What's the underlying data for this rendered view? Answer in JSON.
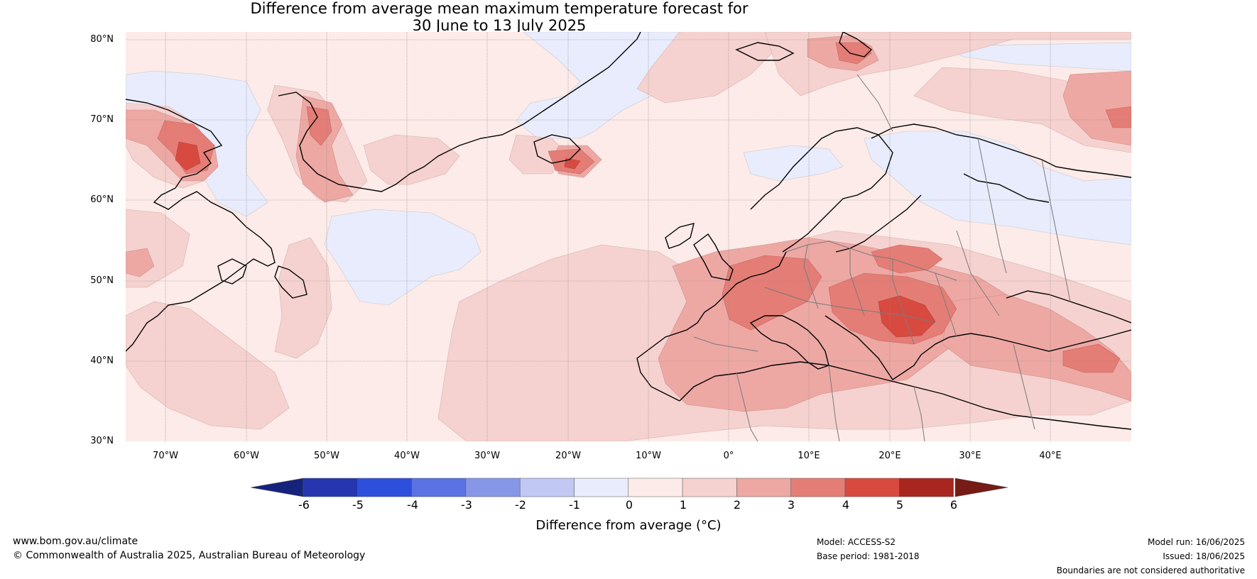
{
  "title": {
    "line1": "Difference from average mean maximum temperature forecast for",
    "line2": "30 June to 13 July 2025"
  },
  "map": {
    "lat_labels": [
      "80°N",
      "70°N",
      "60°N",
      "50°N",
      "40°N",
      "30°N"
    ],
    "lon_labels": [
      "70°W",
      "60°W",
      "50°W",
      "40°W",
      "30°W",
      "20°W",
      "10°W",
      "0°",
      "10°E",
      "20°E",
      "30°E",
      "40°E"
    ],
    "lat_range": [
      30,
      81
    ],
    "lon_range": [
      -75,
      50
    ],
    "projection": "plate carree"
  },
  "colorbar": {
    "ticks": [
      "-6",
      "-5",
      "-4",
      "-3",
      "-2",
      "-1",
      "0",
      "1",
      "2",
      "3",
      "4",
      "5",
      "6"
    ],
    "colors": [
      "#16237d",
      "#2536b0",
      "#2e4edc",
      "#5a72e4",
      "#8797e8",
      "#c0c8f3",
      "#e8ecfc",
      "#fcebe8",
      "#f5d2cf",
      "#eda8a4",
      "#e47d76",
      "#d84a40",
      "#a8261f",
      "#761b15"
    ],
    "label": "Difference from average (°C)"
  },
  "footer": {
    "website": "www.bom.gov.au/climate",
    "copyright": "© Commonwealth of Australia 2025, Australian Bureau of Meteorology",
    "model": "Model: ACCESS-S2",
    "base_period": "Base period: 1981-2018",
    "model_run": "Model run: 16/06/2025",
    "issued": "Issued: 18/06/2025",
    "disclaimer": "Boundaries are not considered authoritative"
  }
}
